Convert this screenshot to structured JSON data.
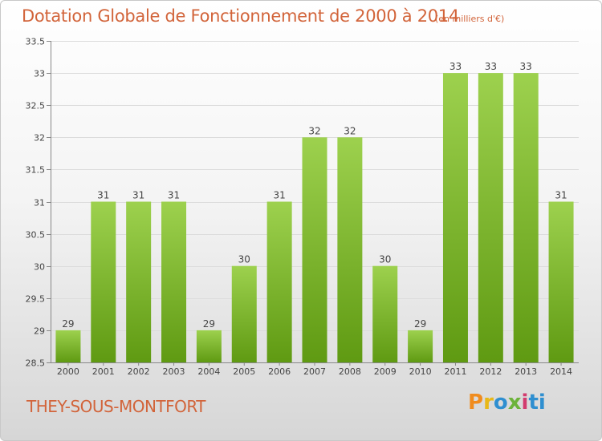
{
  "header": {
    "title": "Dotation Globale de Fonctionnement de 2000 à 2014",
    "subtitle": "(en milliers d'€)"
  },
  "footer": {
    "commune": "THEY-SOUS-MONTFORT",
    "logo": "Proxiti"
  },
  "colors": {
    "bar_light": "#9dd14e",
    "bar_dark": "#5f9a12",
    "text_accent": "#d2643a"
  },
  "chart_data": {
    "type": "bar",
    "categories": [
      "2000",
      "2001",
      "2002",
      "2003",
      "2004",
      "2005",
      "2006",
      "2007",
      "2008",
      "2009",
      "2010",
      "2011",
      "2012",
      "2013",
      "2014"
    ],
    "values": [
      29,
      31,
      31,
      31,
      29,
      30,
      31,
      32,
      32,
      30,
      29,
      33,
      33,
      33,
      31
    ],
    "data_labels": [
      "29",
      "31",
      "31",
      "31",
      "29",
      "30",
      "31",
      "32",
      "32",
      "30",
      "29",
      "33",
      "33",
      "33",
      "31"
    ],
    "yticks": [
      "28.5",
      "29",
      "29.5",
      "30",
      "30.5",
      "31",
      "31.5",
      "32",
      "32.5",
      "33",
      "33.5"
    ],
    "ylim": [
      28.5,
      33.5
    ],
    "title": "Dotation Globale de Fonctionnement de 2000 à 2014",
    "subtitle": "(en milliers d'€)",
    "xlabel": "",
    "ylabel": "",
    "grid": true,
    "legend": "none"
  }
}
